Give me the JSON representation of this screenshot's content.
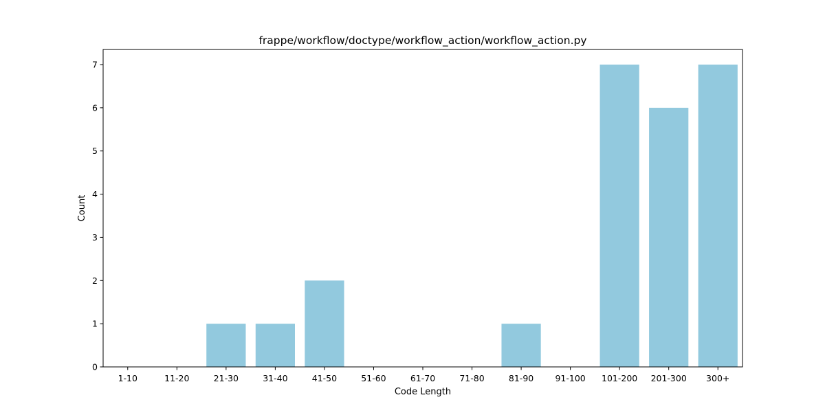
{
  "chart_data": {
    "type": "bar",
    "title": "frappe/workflow/doctype/workflow_action/workflow_action.py",
    "xlabel": "Code Length",
    "ylabel": "Count",
    "categories": [
      "1-10",
      "11-20",
      "21-30",
      "31-40",
      "41-50",
      "51-60",
      "61-70",
      "71-80",
      "81-90",
      "91-100",
      "101-200",
      "201-300",
      "300+"
    ],
    "values": [
      0,
      0,
      1,
      1,
      2,
      0,
      0,
      0,
      1,
      0,
      7,
      6,
      7
    ],
    "ylim": [
      0,
      7.35
    ],
    "yticks": [
      0,
      1,
      2,
      3,
      4,
      5,
      6,
      7
    ],
    "bar_color": "#92c9de",
    "grid": false,
    "legend": "none"
  }
}
